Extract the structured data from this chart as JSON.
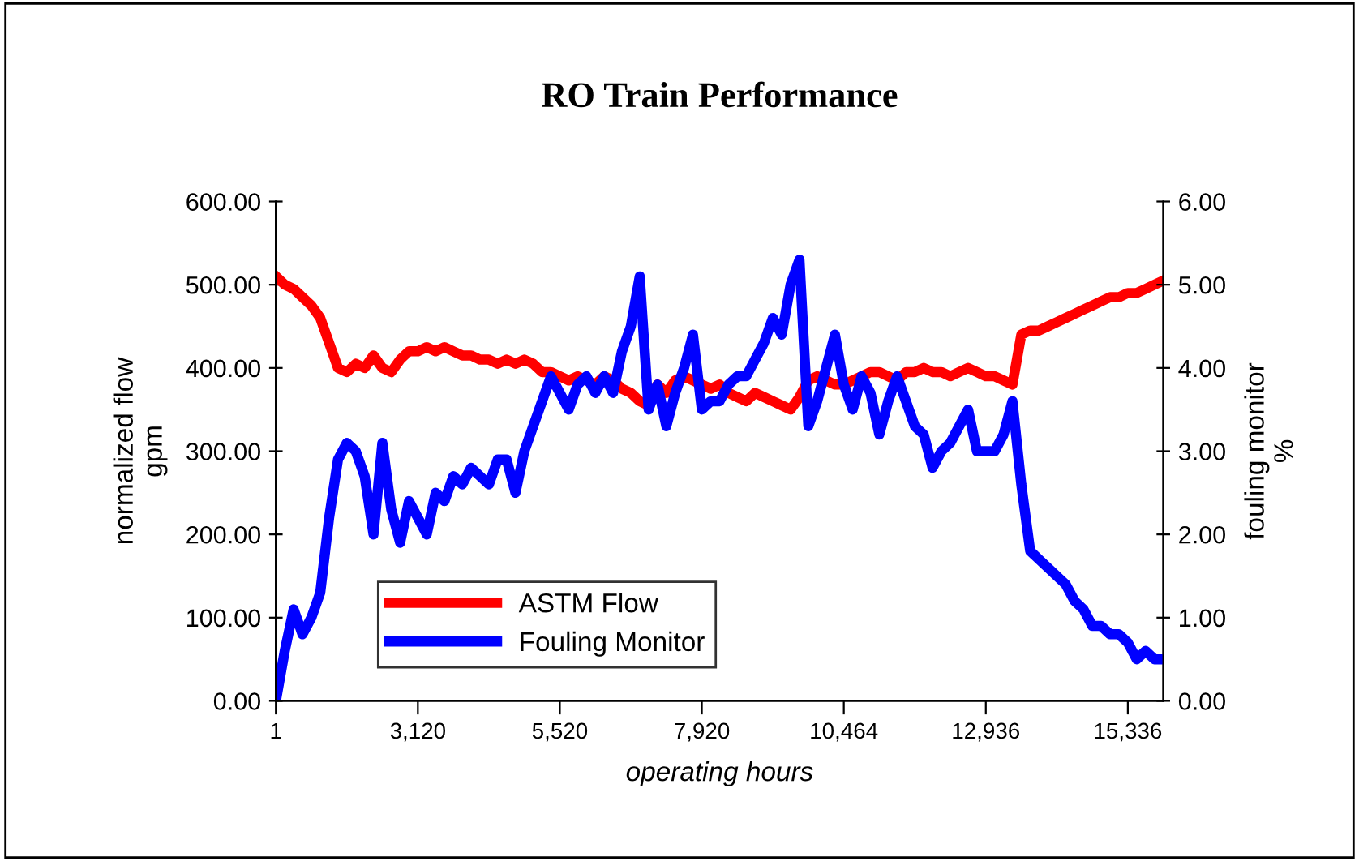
{
  "chart_data": {
    "type": "line",
    "title": "RO Train Performance",
    "xlabel": "operating hours",
    "ylabel": "normalized flow\ngpm",
    "y2label": "fouling monitor\n%",
    "categories": [
      "1",
      null,
      null,
      null,
      null,
      null,
      null,
      null,
      null,
      null,
      null,
      null,
      null,
      null,
      null,
      null,
      "3,120",
      null,
      null,
      null,
      null,
      null,
      null,
      null,
      null,
      null,
      null,
      null,
      null,
      null,
      null,
      null,
      "5,520",
      null,
      null,
      null,
      null,
      null,
      null,
      null,
      null,
      null,
      null,
      null,
      null,
      null,
      null,
      null,
      "7,920",
      null,
      null,
      null,
      null,
      null,
      null,
      null,
      null,
      null,
      null,
      null,
      null,
      null,
      null,
      null,
      "10,464",
      null,
      null,
      null,
      null,
      null,
      null,
      null,
      null,
      null,
      null,
      null,
      null,
      null,
      null,
      null,
      "12,936",
      null,
      null,
      null,
      null,
      null,
      null,
      null,
      null,
      null,
      null,
      null,
      null,
      null,
      null,
      null,
      "15,336",
      null,
      null,
      null,
      null
    ],
    "series": [
      {
        "name": "ASTM Flow",
        "color": "#ff0000",
        "values": [
          510,
          500,
          495,
          485,
          475,
          460,
          430,
          400,
          395,
          405,
          400,
          415,
          400,
          395,
          410,
          420,
          420,
          425,
          420,
          425,
          420,
          415,
          415,
          410,
          410,
          405,
          410,
          405,
          410,
          405,
          395,
          395,
          390,
          385,
          390,
          385,
          380,
          390,
          385,
          375,
          370,
          360,
          355,
          380,
          370,
          385,
          390,
          385,
          380,
          375,
          380,
          370,
          365,
          360,
          370,
          365,
          360,
          355,
          350,
          365,
          385,
          390,
          385,
          380,
          380,
          385,
          390,
          395,
          395,
          390,
          385,
          395,
          395,
          400,
          395,
          395,
          390,
          395,
          400,
          395,
          390,
          390,
          385,
          380,
          440,
          445,
          445,
          450,
          455,
          460,
          465,
          470,
          475,
          480,
          485,
          485,
          490,
          490,
          495,
          500,
          505
        ]
      },
      {
        "name": "Fouling Monitor",
        "color": "#0000ff",
        "axis": "y2",
        "values": [
          0.0,
          0.6,
          1.1,
          0.8,
          1.0,
          1.3,
          2.2,
          2.9,
          3.1,
          3.0,
          2.7,
          2.0,
          3.1,
          2.3,
          1.9,
          2.4,
          2.2,
          2.0,
          2.5,
          2.4,
          2.7,
          2.6,
          2.8,
          2.7,
          2.6,
          2.9,
          2.9,
          2.5,
          3.0,
          3.3,
          3.6,
          3.9,
          3.7,
          3.5,
          3.8,
          3.9,
          3.7,
          3.9,
          3.7,
          4.2,
          4.5,
          5.1,
          3.5,
          3.8,
          3.3,
          3.7,
          4.0,
          4.4,
          3.5,
          3.6,
          3.6,
          3.8,
          3.9,
          3.9,
          4.1,
          4.3,
          4.6,
          4.4,
          5.0,
          5.3,
          3.3,
          3.6,
          4.0,
          4.4,
          3.8,
          3.5,
          3.9,
          3.7,
          3.2,
          3.6,
          3.9,
          3.6,
          3.3,
          3.2,
          2.8,
          3.0,
          3.1,
          3.3,
          3.5,
          3.0,
          3.0,
          3.0,
          3.2,
          3.6,
          2.6,
          1.8,
          1.7,
          1.6,
          1.5,
          1.4,
          1.2,
          1.1,
          0.9,
          0.9,
          0.8,
          0.8,
          0.7,
          0.5,
          0.6,
          0.5,
          0.5
        ]
      }
    ],
    "ylim": [
      0,
      600
    ],
    "yticks": [
      {
        "value": 0,
        "label": "0.00"
      },
      {
        "value": 100,
        "label": "100.00"
      },
      {
        "value": 200,
        "label": "200.00"
      },
      {
        "value": 300,
        "label": "300.00"
      },
      {
        "value": 400,
        "label": "400.00"
      },
      {
        "value": 500,
        "label": "500.00"
      },
      {
        "value": 600,
        "label": "600.00"
      }
    ],
    "y2lim": [
      0,
      6
    ],
    "y2ticks": [
      {
        "value": 0,
        "label": "0.00"
      },
      {
        "value": 1,
        "label": "1.00"
      },
      {
        "value": 2,
        "label": "2.00"
      },
      {
        "value": 3,
        "label": "3.00"
      },
      {
        "value": 4,
        "label": "4.00"
      },
      {
        "value": 5,
        "label": "5.00"
      },
      {
        "value": 6,
        "label": "6.00"
      }
    ],
    "legend": "bottom left",
    "grid": false,
    "marker": "none",
    "line_style": "solid"
  }
}
